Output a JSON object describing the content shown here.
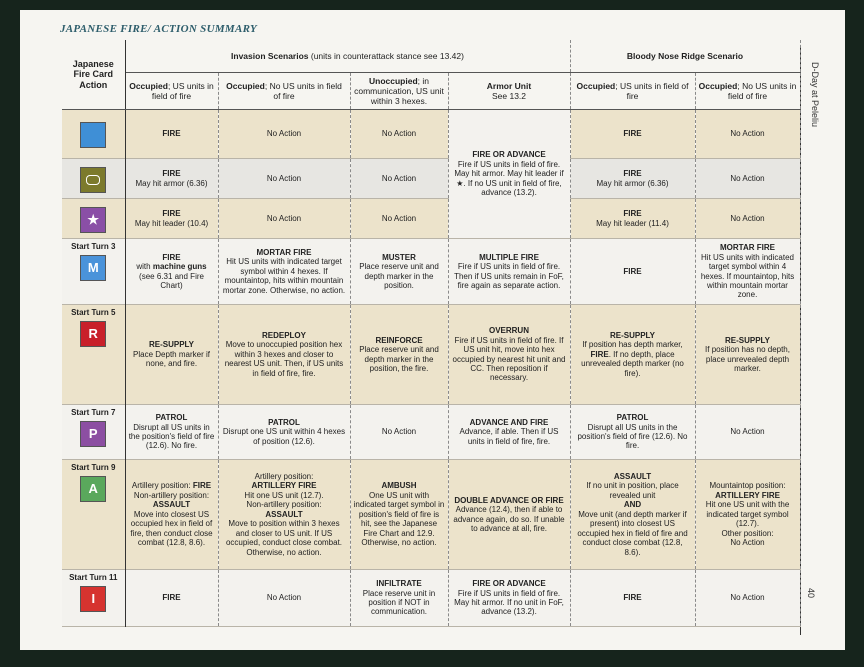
{
  "header": {
    "title": "JAPANESE FIRE/ ACTION SUMMARY",
    "side_title": "D-Day at Peleliu",
    "page_number": "40"
  },
  "table": {
    "action_header": "Japanese Fire Card Action",
    "groups": [
      {
        "columns": 4,
        "runs": [
          {
            "text": "Invasion Scenarios",
            "bold": true
          },
          {
            "text": " (units in counterattack stance see 13.42)"
          }
        ]
      },
      {
        "columns": 2,
        "runs": [
          {
            "text": "Bloody Nose Ridge Scenario",
            "bold": true
          }
        ]
      }
    ],
    "columns": [
      {
        "runs": [
          {
            "text": "Occupied",
            "bold": true
          },
          {
            "text": "; US units in field of fire"
          }
        ]
      },
      {
        "runs": [
          {
            "text": "Occupied",
            "bold": true
          },
          {
            "text": "; No US units in field of fire"
          }
        ]
      },
      {
        "runs": [
          {
            "text": "Unoccupied",
            "bold": true
          },
          {
            "text": "; in communication, US unit within 3 hexes."
          }
        ]
      },
      {
        "runs": [
          {
            "text": "Armor Unit",
            "bold": true
          },
          {
            "text": "See 13.2",
            "break": true
          }
        ]
      },
      {
        "runs": [
          {
            "text": "Occupied",
            "bold": true
          },
          {
            "text": "; US units in field of fire"
          }
        ]
      },
      {
        "runs": [
          {
            "text": "Occupied",
            "bold": true
          },
          {
            "text": "; No US units in field of fire"
          }
        ]
      }
    ],
    "rows": [
      {
        "card": {
          "color": "#3f8fd6"
        },
        "cells": [
          {
            "runs": [
              {
                "text": "FIRE",
                "bold": true
              }
            ]
          },
          {
            "runs": [
              {
                "text": "No Action"
              }
            ]
          },
          {
            "runs": [
              {
                "text": "No Action"
              }
            ]
          },
          {
            "rows": 3,
            "runs": [
              {
                "text": "FIRE OR ADVANCE",
                "bold": true
              },
              {
                "text": "Fire if US units in field of fire. May hit armor. May hit leader if ★. If no US unit in field of fire, advance (13.2).",
                "break": true
              }
            ]
          },
          {
            "runs": [
              {
                "text": "FIRE",
                "bold": true
              }
            ]
          },
          {
            "runs": [
              {
                "text": "No Action"
              }
            ]
          }
        ]
      },
      {
        "card": {
          "color": "#7c7a2c",
          "shape": "rounded"
        },
        "cells": [
          {
            "runs": [
              {
                "text": "FIRE",
                "bold": true
              },
              {
                "text": "May hit armor (6.36)",
                "break": true
              }
            ]
          },
          {
            "runs": [
              {
                "text": "No Action"
              }
            ]
          },
          {
            "runs": [
              {
                "text": "No Action"
              }
            ]
          },
          {
            "runs": [
              {
                "text": "FIRE",
                "bold": true
              },
              {
                "text": "May hit armor (6.36)",
                "break": true
              }
            ]
          },
          {
            "runs": [
              {
                "text": "No Action"
              }
            ]
          }
        ]
      },
      {
        "card": {
          "color": "#8a4fa6",
          "symbol": "★"
        },
        "cells": [
          {
            "runs": [
              {
                "text": "FIRE",
                "bold": true
              },
              {
                "text": "May hit leader (10.4)",
                "break": true
              }
            ]
          },
          {
            "runs": [
              {
                "text": "No Action"
              }
            ]
          },
          {
            "runs": [
              {
                "text": "No Action"
              }
            ]
          },
          {
            "runs": [
              {
                "text": "FIRE",
                "bold": true
              },
              {
                "text": "May hit leader (11.4)",
                "break": true
              }
            ]
          },
          {
            "runs": [
              {
                "text": "No Action"
              }
            ]
          }
        ]
      },
      {
        "label": "Start Turn 3",
        "card": {
          "color": "#4a93da",
          "symbol": "M"
        },
        "cells": [
          {
            "runs": [
              {
                "text": "FIRE",
                "bold": true
              },
              {
                "text": "with ",
                "break": true
              },
              {
                "text": "machine guns",
                "bold": true
              },
              {
                "text": " (see 6.31 and Fire Chart)"
              }
            ]
          },
          {
            "runs": [
              {
                "text": "MORTAR FIRE",
                "bold": true
              },
              {
                "text": "Hit US units with indicated target symbol within 4 hexes. If mountaintop, hits within mountain mortar zone. Otherwise, no action.",
                "break": true
              }
            ]
          },
          {
            "runs": [
              {
                "text": "MUSTER",
                "bold": true
              },
              {
                "text": "Place reserve unit and depth marker in the position.",
                "break": true
              }
            ]
          },
          {
            "runs": [
              {
                "text": "MULTIPLE FIRE",
                "bold": true
              },
              {
                "text": "Fire if US units in field of fire. Then if US units remain in FoF, fire again as separate action.",
                "break": true
              }
            ]
          },
          {
            "runs": [
              {
                "text": "FIRE",
                "bold": true
              }
            ]
          },
          {
            "runs": [
              {
                "text": "MORTAR FIRE",
                "bold": true
              },
              {
                "text": "Hit US units with indicated target symbol within 4 hexes. If mountaintop, hits within mountain mortar zone.",
                "break": true
              }
            ]
          }
        ]
      },
      {
        "label": "Start Turn 5",
        "card": {
          "color": "#c8202a",
          "symbol": "R"
        },
        "cells": [
          {
            "runs": [
              {
                "text": "RE-SUPPLY",
                "bold": true
              },
              {
                "text": "Place Depth marker if none, and fire.",
                "break": true
              }
            ]
          },
          {
            "runs": [
              {
                "text": "REDEPLOY",
                "bold": true
              },
              {
                "text": "Move to unoccupied position hex within 3 hexes and closer to nearest US unit. Then, if US units in field of fire, fire.",
                "break": true
              }
            ]
          },
          {
            "runs": [
              {
                "text": "REINFORCE",
                "bold": true
              },
              {
                "text": "Place reserve unit and depth marker in the position, the fire.",
                "break": true
              }
            ]
          },
          {
            "runs": [
              {
                "text": "OVERRUN",
                "bold": true
              },
              {
                "text": "Fire if US units in field of fire. If US unit hit, move into hex occupied by nearest hit unit and CC. Then reposition if necessary.",
                "break": true
              }
            ]
          },
          {
            "runs": [
              {
                "text": "RE-SUPPLY",
                "bold": true
              },
              {
                "text": "If position has depth marker, ",
                "break": true
              },
              {
                "text": "FIRE",
                "bold": true
              },
              {
                "text": ". If no depth, place unrevealed depth marker (no fire)."
              }
            ]
          },
          {
            "runs": [
              {
                "text": "RE-SUPPLY",
                "bold": true
              },
              {
                "text": "If position has no depth, place unrevealed depth marker.",
                "break": true
              }
            ]
          }
        ]
      },
      {
        "label": "Start Turn 7",
        "card": {
          "color": "#8c4fa2",
          "symbol": "P"
        },
        "cells": [
          {
            "runs": [
              {
                "text": "PATROL",
                "bold": true
              },
              {
                "text": "Disrupt all US units in the position's field of fire (12.6). No fire.",
                "break": true
              }
            ]
          },
          {
            "runs": [
              {
                "text": "PATROL",
                "bold": true
              },
              {
                "text": "Disrupt one US unit within 4 hexes of position (12.6).",
                "break": true
              }
            ]
          },
          {
            "runs": [
              {
                "text": "No Action"
              }
            ]
          },
          {
            "runs": [
              {
                "text": "ADVANCE AND FIRE",
                "bold": true
              },
              {
                "text": "Advance, if able. Then if US units in field of fire, fire.",
                "break": true
              }
            ]
          },
          {
            "runs": [
              {
                "text": "PATROL",
                "bold": true
              },
              {
                "text": "Disrupt all US units in the position's field of fire (12.6). No fire.",
                "break": true
              }
            ]
          },
          {
            "runs": [
              {
                "text": "No Action"
              }
            ]
          }
        ]
      },
      {
        "label": "Start Turn 9",
        "card": {
          "color": "#5aa85c",
          "symbol": "A"
        },
        "cells": [
          {
            "runs": [
              {
                "text": "Artillery position: "
              },
              {
                "text": "FIRE",
                "bold": true
              },
              {
                "text": "Non-artillery position:",
                "break": true
              },
              {
                "text": "ASSAULT",
                "bold": true,
                "break": true
              },
              {
                "text": "Move into closest US occupied hex in field of fire, then conduct close combat (12.8, 8.6).",
                "break": true
              }
            ]
          },
          {
            "runs": [
              {
                "text": "Artillery position:"
              },
              {
                "text": "ARTILLERY FIRE",
                "bold": true,
                "break": true
              },
              {
                "text": "Hit one US unit (12.7).",
                "break": true
              },
              {
                "text": "Non-artillery position:",
                "break": true
              },
              {
                "text": "ASSAULT",
                "bold": true,
                "break": true
              },
              {
                "text": "Move to position within 3 hexes and closer to US unit. If US occupied, conduct close combat. Otherwise, no action.",
                "break": true
              }
            ]
          },
          {
            "runs": [
              {
                "text": "AMBUSH",
                "bold": true
              },
              {
                "text": "One US unit with indicated target symbol in position's field of fire is hit, see the Japanese Fire Chart and 12.9. Otherwise, no action.",
                "break": true
              }
            ]
          },
          {
            "runs": [
              {
                "text": "DOUBLE ADVANCE OR FIRE",
                "bold": true
              },
              {
                "text": "Advance (12.4), then if able to advance again, do so. If unable to advance at all, fire.",
                "break": true
              }
            ]
          },
          {
            "runs": [
              {
                "text": "ASSAULT",
                "bold": true
              },
              {
                "text": "If no unit in position, place revealed unit",
                "break": true
              },
              {
                "text": "AND",
                "bold": true,
                "break": true
              },
              {
                "text": "Move unit (and depth marker if present) into closest US occupied hex in field of fire and conduct close combat (12.8, 8.6).",
                "break": true
              }
            ]
          },
          {
            "runs": [
              {
                "text": "Mountaintop position:"
              },
              {
                "text": "ARTILLERY FIRE",
                "bold": true,
                "break": true
              },
              {
                "text": "Hit one US unit with the indicated target symbol (12.7).",
                "break": true
              },
              {
                "text": "Other position:",
                "break": true
              },
              {
                "text": "No Action",
                "break": true
              }
            ]
          }
        ]
      },
      {
        "label": "Start Turn 11",
        "card": {
          "color": "#d6332f",
          "symbol": "I"
        },
        "cells": [
          {
            "runs": [
              {
                "text": "FIRE",
                "bold": true
              }
            ]
          },
          {
            "runs": [
              {
                "text": "No Action"
              }
            ]
          },
          {
            "runs": [
              {
                "text": "INFILTRATE",
                "bold": true
              },
              {
                "text": "Place reserve unit in position if NOT in communication.",
                "break": true
              }
            ]
          },
          {
            "runs": [
              {
                "text": "FIRE OR ADVANCE",
                "bold": true
              },
              {
                "text": "Fire if US units in field of fire. May hit armor. If no unit in FoF, advance (13.2).",
                "break": true
              }
            ]
          },
          {
            "runs": [
              {
                "text": "FIRE",
                "bold": true
              }
            ]
          },
          {
            "runs": [
              {
                "text": "No Action"
              }
            ]
          }
        ]
      }
    ]
  }
}
